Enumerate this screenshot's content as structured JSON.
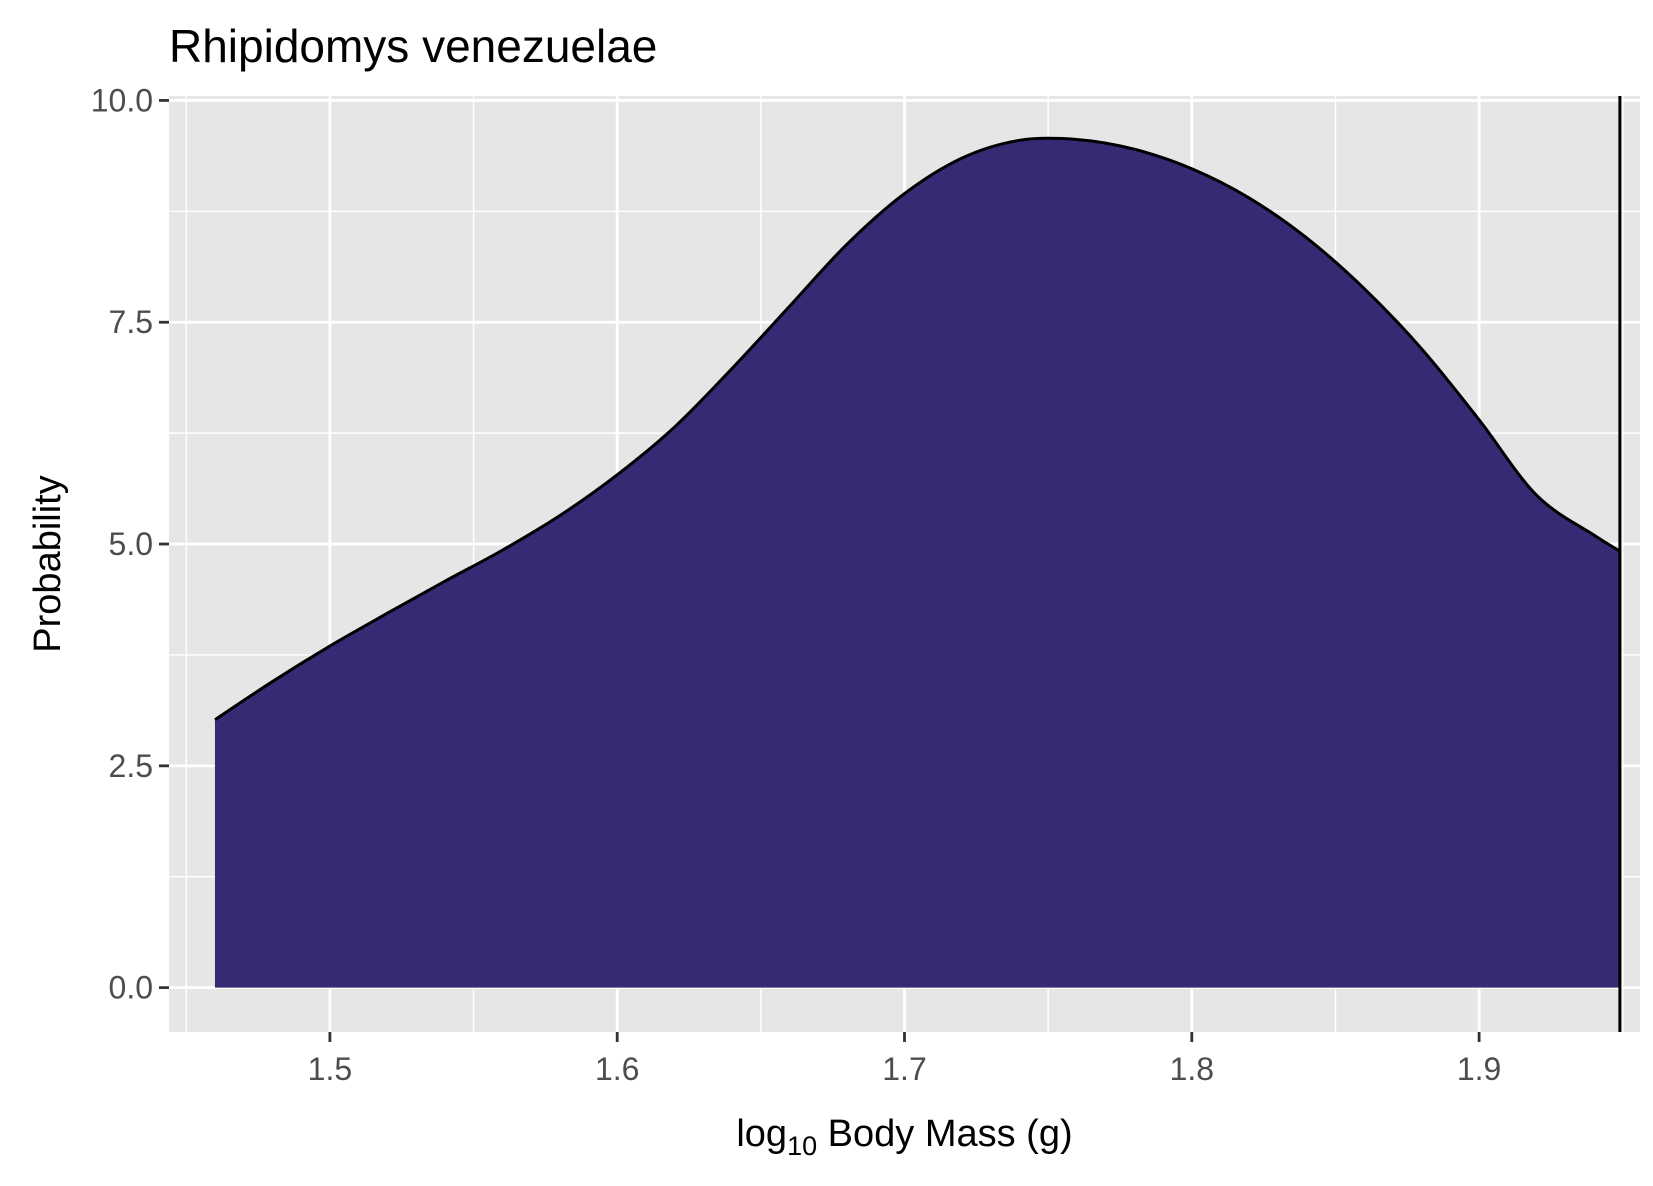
{
  "chart_data": {
    "type": "area",
    "title": "Rhipidomys venezuelae",
    "xlabel": "",
    "xlabel_prefix": "log",
    "xlabel_subscript": "10",
    "xlabel_rest": " Body Mass (g)",
    "ylabel": "Probability",
    "xlim": [
      1.444,
      1.956
    ],
    "ylim": [
      -0.5,
      10.05
    ],
    "x_ticks": [
      1.5,
      1.6,
      1.7,
      1.8,
      1.9
    ],
    "x_tick_labels": [
      "1.5",
      "1.6",
      "1.7",
      "1.8",
      "1.9"
    ],
    "y_ticks": [
      0,
      2.5,
      5,
      7.5,
      10
    ],
    "y_tick_labels": [
      "0.0",
      "2.5",
      "5.0",
      "7.5",
      "10.0"
    ],
    "grid": true,
    "fill_color": "#372a75",
    "panel_color": "#e6e6e6",
    "series": [
      {
        "x": [
          1.46,
          1.48,
          1.5,
          1.52,
          1.54,
          1.56,
          1.58,
          1.6,
          1.62,
          1.64,
          1.66,
          1.68,
          1.7,
          1.72,
          1.74,
          1.76,
          1.78,
          1.8,
          1.82,
          1.84,
          1.86,
          1.88,
          1.9,
          1.92,
          1.94,
          1.949
        ],
        "y": [
          3.02,
          3.45,
          3.85,
          4.22,
          4.58,
          4.93,
          5.32,
          5.78,
          6.32,
          6.98,
          7.68,
          8.38,
          8.95,
          9.35,
          9.55,
          9.56,
          9.45,
          9.23,
          8.9,
          8.45,
          7.88,
          7.2,
          6.4,
          5.55,
          5.1,
          4.92
        ]
      }
    ],
    "vline_x": 1.949
  }
}
